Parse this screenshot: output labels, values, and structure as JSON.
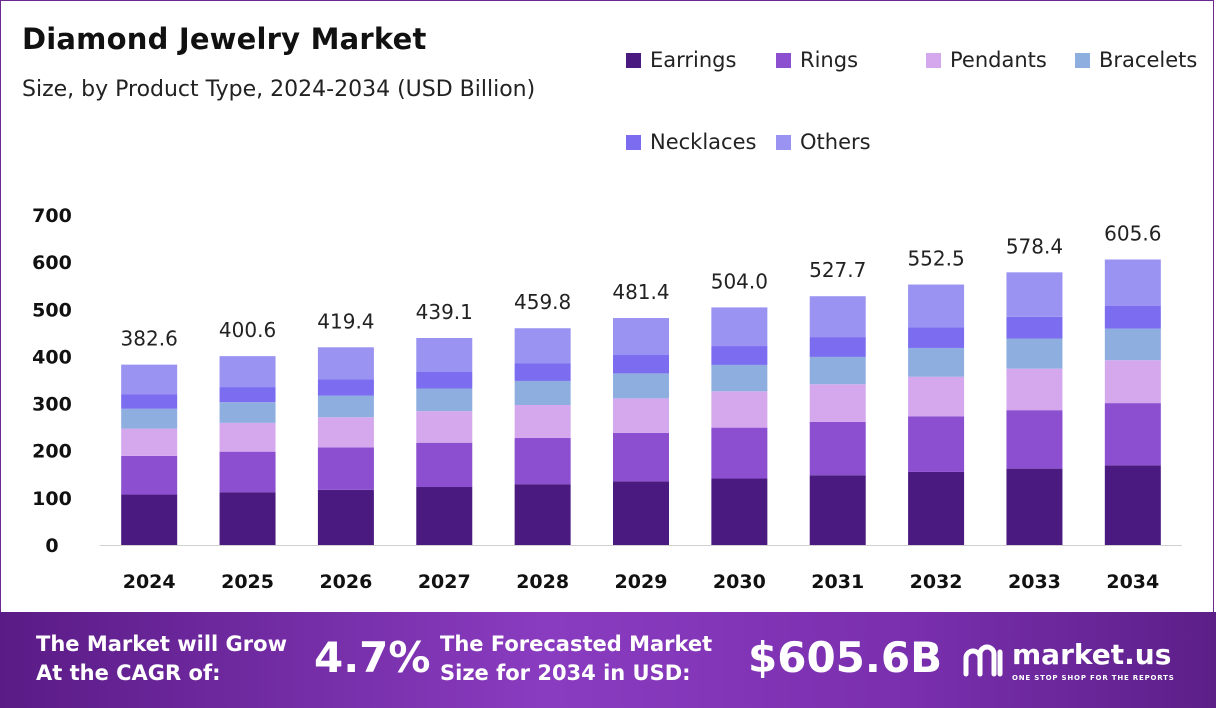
{
  "header": {
    "title": "Diamond Jewelry Market",
    "subtitle": "Size, by Product Type, 2024-2034 (USD Billion)"
  },
  "legend": [
    {
      "label": "Earrings",
      "color": "#4b1a80"
    },
    {
      "label": "Rings",
      "color": "#8b4fd0"
    },
    {
      "label": "Pendants",
      "color": "#d5a8ee"
    },
    {
      "label": "Bracelets",
      "color": "#8faee0"
    },
    {
      "label": "Necklaces",
      "color": "#7b6cf0"
    },
    {
      "label": "Others",
      "color": "#9a93f2"
    }
  ],
  "chart_data": {
    "type": "bar",
    "stacked": true,
    "title": "Diamond Jewelry Market",
    "subtitle": "Size, by Product Type, 2024-2034 (USD Billion)",
    "categories": [
      "2024",
      "2025",
      "2026",
      "2027",
      "2028",
      "2029",
      "2030",
      "2031",
      "2032",
      "2033",
      "2034"
    ],
    "totals_labels": [
      "382.6",
      "400.6",
      "419.4",
      "439.1",
      "459.8",
      "481.4",
      "504.0",
      "527.7",
      "552.5",
      "578.4",
      "605.6"
    ],
    "series": [
      {
        "name": "Earrings",
        "values": [
          107,
          112,
          117,
          123,
          129,
          135,
          141,
          148,
          155,
          162,
          169
        ]
      },
      {
        "name": "Rings",
        "values": [
          82,
          86,
          90,
          94,
          98,
          103,
          108,
          113,
          118,
          124,
          132
        ]
      },
      {
        "name": "Pendants",
        "values": [
          58,
          61,
          64,
          67,
          70,
          73,
          77,
          80,
          84,
          88,
          91
        ]
      },
      {
        "name": "Bracelets",
        "values": [
          42,
          44,
          46,
          48,
          51,
          53,
          56,
          58,
          61,
          64,
          67
        ]
      },
      {
        "name": "Necklaces",
        "values": [
          31,
          32,
          34,
          35,
          37,
          39,
          40,
          42,
          44,
          46,
          48
        ]
      },
      {
        "name": "Others",
        "values": [
          62.6,
          65.6,
          68.4,
          72.1,
          74.8,
          78.4,
          82.0,
          86.7,
          90.5,
          94.4,
          98.6
        ]
      }
    ],
    "yticks": [
      "0",
      "100",
      "200",
      "300",
      "400",
      "500",
      "600",
      "700"
    ],
    "ylim": [
      0,
      700
    ],
    "xlabel": "",
    "ylabel": "",
    "grid": false
  },
  "footer": {
    "cagr_label_line1": "The Market will Grow",
    "cagr_label_line2": "At the CAGR of:",
    "cagr_value": "4.7%",
    "forecast_label_line1": "The Forecasted Market",
    "forecast_label_line2": "Size for 2034 in USD:",
    "forecast_value": "$605.6B",
    "brand": "market.us",
    "brand_tagline": "ONE STOP SHOP FOR THE REPORTS"
  }
}
